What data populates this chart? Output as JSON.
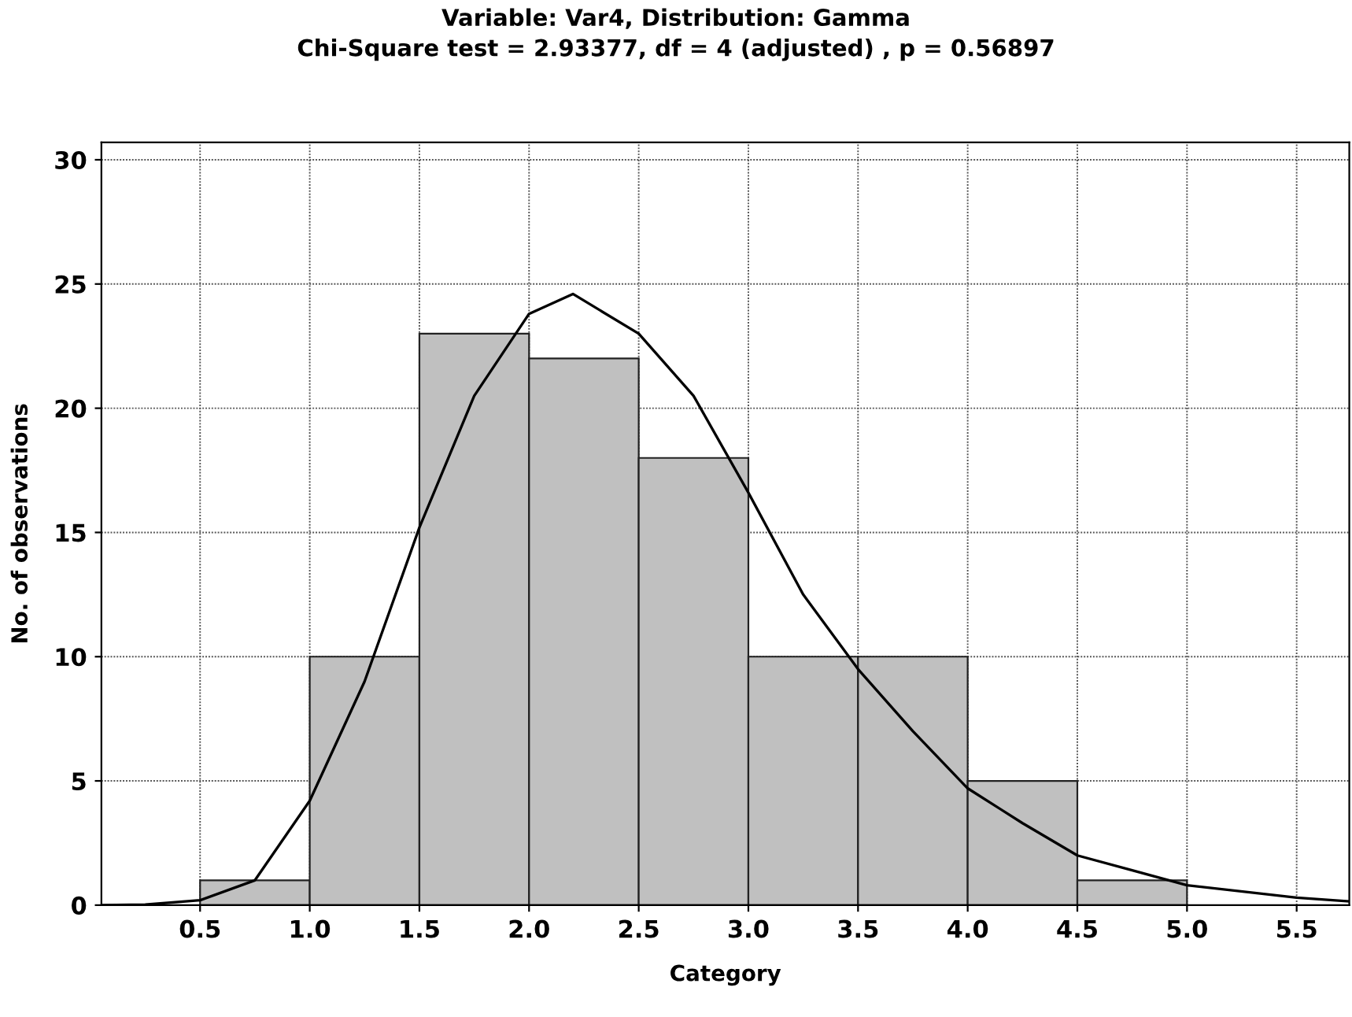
{
  "chart_data": {
    "type": "histogram",
    "title": "Variable: Var4, Distribution: Gamma",
    "subtitle": "Chi-Square test = 2.93377, df = 4 (adjusted) , p = 0.56897",
    "xlabel": "Category",
    "ylabel": "No. of observations",
    "bins": [
      0.5,
      1.0,
      1.5,
      2.0,
      2.5,
      3.0,
      3.5,
      4.0,
      4.5,
      5.0
    ],
    "values": [
      1,
      10,
      23,
      22,
      18,
      10,
      10,
      5,
      1
    ],
    "color": "#c0c0c0",
    "series": [
      {
        "type": "line",
        "color": "#000000",
        "x": [
          0.05,
          0.25,
          0.5,
          0.75,
          1.0,
          1.25,
          1.5,
          1.75,
          2.0,
          2.2,
          2.5,
          2.75,
          3.0,
          3.25,
          3.5,
          3.75,
          4.0,
          4.25,
          4.5,
          4.75,
          5.0,
          5.5,
          5.74
        ],
        "values": [
          0,
          0.02,
          0.2,
          1,
          4.2,
          9,
          15.2,
          20.5,
          23.8,
          24.6,
          23,
          20.5,
          16.6,
          12.5,
          9.5,
          7,
          4.7,
          3.3,
          2,
          1.4,
          0.8,
          0.3,
          0.15
        ]
      }
    ],
    "xlim": [
      0.05,
      5.74
    ],
    "ylim": [
      0,
      30.7
    ],
    "xticks": [
      0.5,
      {
        "value": 1,
        "label": "1.0"
      },
      1.5,
      {
        "value": 2,
        "label": "2.0"
      },
      2.5,
      {
        "value": 3,
        "label": "3.0"
      },
      3.5,
      {
        "value": 4,
        "label": "4.0"
      },
      4.5,
      {
        "value": 5,
        "label": "5.0"
      },
      5.5
    ],
    "yticks": [
      0,
      5,
      10,
      15,
      20,
      25,
      30
    ],
    "grid": true,
    "legend": false
  }
}
